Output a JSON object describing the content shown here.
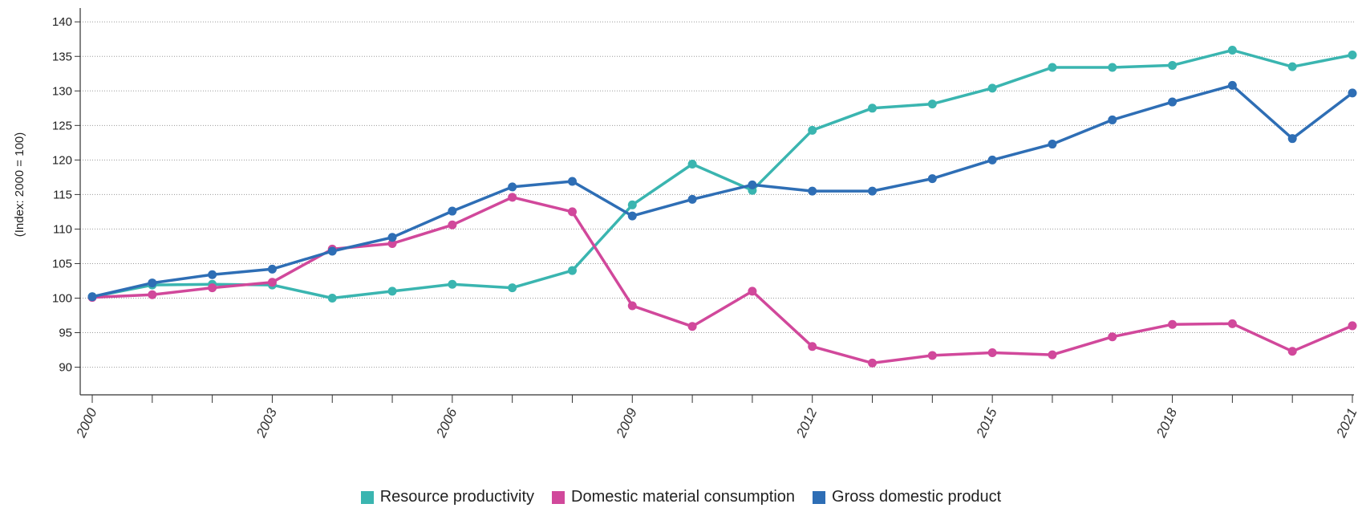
{
  "chart_data": {
    "type": "line",
    "ylabel": "(Index: 2000 = 100)",
    "xlabel": "",
    "title": "",
    "ylim": [
      86,
      142
    ],
    "yticks": [
      90,
      95,
      100,
      105,
      110,
      115,
      120,
      125,
      130,
      135,
      140
    ],
    "x_tick_labels": [
      "2000",
      "2003",
      "2006",
      "2009",
      "2012",
      "2015",
      "2018",
      "2021"
    ],
    "x_tick_label_positions": [
      2000,
      2003,
      2006,
      2009,
      2012,
      2015,
      2018,
      2021
    ],
    "x": [
      2000,
      2001,
      2002,
      2003,
      2004,
      2005,
      2006,
      2007,
      2008,
      2009,
      2010,
      2011,
      2012,
      2013,
      2014,
      2015,
      2016,
      2017,
      2018,
      2019,
      2020,
      2021
    ],
    "grid": "horizontal dotted",
    "legend_placement": "bottom-center",
    "series": [
      {
        "name": "Resource productivity",
        "color": "#3ab5b0",
        "values": [
          100.2,
          101.9,
          102.0,
          101.9,
          100.0,
          101.0,
          102.0,
          101.5,
          104.0,
          113.5,
          119.4,
          115.6,
          124.3,
          127.5,
          128.1,
          130.4,
          133.4,
          133.4,
          133.7,
          135.9,
          133.5,
          135.2
        ]
      },
      {
        "name": "Domestic material consumption",
        "color": "#d1489b",
        "values": [
          100.1,
          100.5,
          101.5,
          102.3,
          107.1,
          107.9,
          110.6,
          114.6,
          112.5,
          98.9,
          95.9,
          101.0,
          93.0,
          90.6,
          91.7,
          92.1,
          91.8,
          94.4,
          96.2,
          96.3,
          92.3,
          96.0
        ]
      },
      {
        "name": "Gross domestic product",
        "color": "#2e6eb5",
        "values": [
          100.2,
          102.2,
          103.4,
          104.2,
          106.8,
          108.8,
          112.6,
          116.1,
          116.9,
          111.9,
          114.3,
          116.4,
          115.5,
          115.5,
          117.3,
          120.0,
          122.3,
          125.8,
          128.4,
          130.8,
          123.1,
          129.7
        ]
      }
    ]
  }
}
